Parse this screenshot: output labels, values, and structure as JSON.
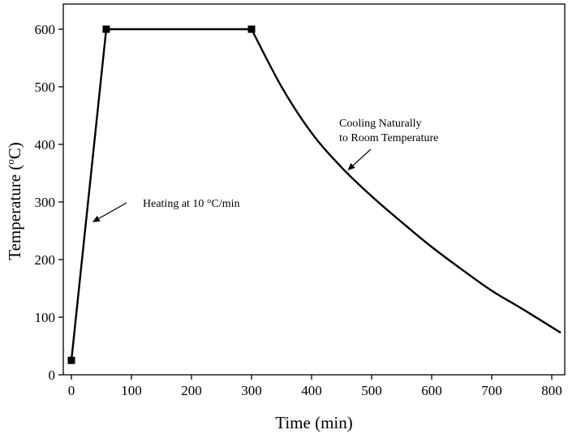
{
  "chart_data": {
    "type": "line",
    "xlabel": "Time (min)",
    "ylabel_main": "Temperature (",
    "ylabel_sup": "o",
    "ylabel_tail": "C)",
    "xlim": [
      0,
      820
    ],
    "ylim": [
      0,
      600
    ],
    "xticks": [
      0,
      100,
      200,
      300,
      400,
      500,
      600,
      700,
      800
    ],
    "yticks": [
      0,
      100,
      200,
      300,
      400,
      500,
      600
    ],
    "grid": false,
    "legend": "none",
    "series": [
      {
        "x": [
          0,
          58,
          300,
          350,
          400,
          450,
          500,
          550,
          600,
          650,
          700,
          750,
          815
        ],
        "y": [
          25,
          600,
          600,
          500,
          420,
          360,
          310,
          265,
          222,
          183,
          146,
          115,
          73
        ],
        "markers_at": [
          0,
          1,
          2
        ]
      }
    ],
    "annotations": [
      {
        "id": "heating",
        "lines": [
          "Heating at 10 °C/min"
        ],
        "arrow_to": [
          35,
          265
        ]
      },
      {
        "id": "cooling",
        "lines": [
          "Cooling Naturally",
          "to Room Temperature"
        ],
        "arrow_to": [
          460,
          355
        ]
      }
    ]
  }
}
